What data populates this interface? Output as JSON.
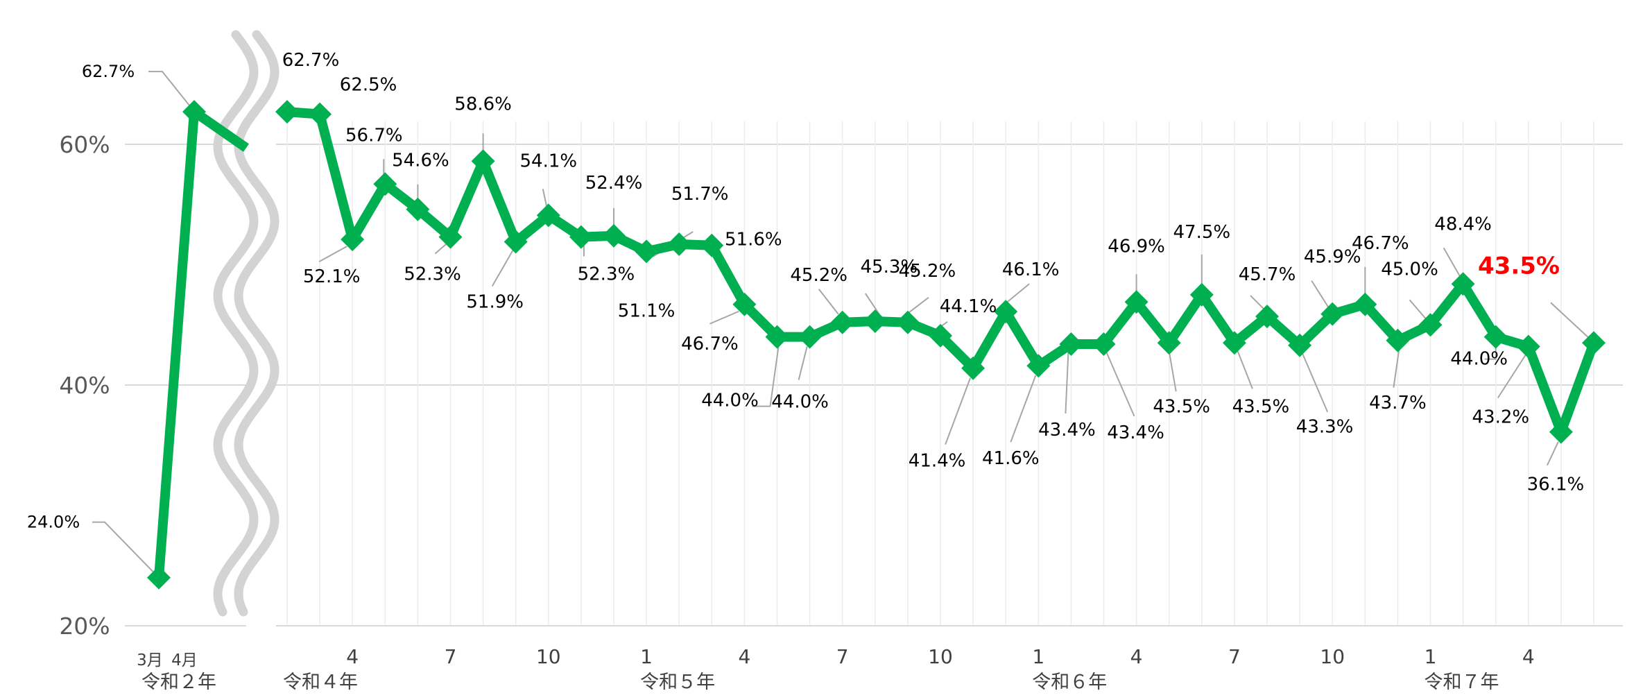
{
  "chart_data": {
    "type": "line",
    "title": "",
    "xlabel": "",
    "ylabel": "",
    "y_ticks": [
      "20%",
      "40%",
      "60%"
    ],
    "ylim": [
      20,
      60
    ],
    "grid": "horizontal and vertical",
    "y_break": true,
    "accent_color": "#00b050",
    "highlight_color": "#ff0000",
    "segments": [
      {
        "era_label": "令和２年",
        "tick_labels": [
          "3月",
          "4月"
        ],
        "points": [
          {
            "period": "令和2年3月",
            "value": 24.0,
            "label": "24.0%"
          },
          {
            "period": "令和2年4月",
            "value": 62.7,
            "label": "62.7%"
          }
        ]
      },
      {
        "era_labels": [
          "令和４年",
          "令和５年",
          "令和６年",
          "令和７年"
        ],
        "tick_labels": [
          "4",
          "7",
          "10",
          "1",
          "4",
          "7",
          "10",
          "1",
          "4",
          "7",
          "10",
          "1",
          "4"
        ],
        "points": [
          {
            "period": "令和4年2月",
            "value": 62.7,
            "label": "62.7%"
          },
          {
            "period": "令和4年3月",
            "value": 62.5,
            "label": "62.5%"
          },
          {
            "period": "令和4年4月",
            "value": 52.1,
            "label": "52.1%"
          },
          {
            "period": "令和4年5月",
            "value": 56.7,
            "label": "56.7%"
          },
          {
            "period": "令和4年6月",
            "value": 54.6,
            "label": "54.6%"
          },
          {
            "period": "令和4年7月",
            "value": 52.3,
            "label": "52.3%"
          },
          {
            "period": "令和4年8月",
            "value": 58.6,
            "label": "58.6%"
          },
          {
            "period": "令和4年9月",
            "value": 51.9,
            "label": "51.9%"
          },
          {
            "period": "令和4年10月",
            "value": 54.1,
            "label": "54.1%"
          },
          {
            "period": "令和4年11月",
            "value": 52.3,
            "label": "52.3%"
          },
          {
            "period": "令和4年12月",
            "value": 52.4,
            "label": "52.4%"
          },
          {
            "period": "令和5年1月",
            "value": 51.1,
            "label": "51.1%"
          },
          {
            "period": "令和5年2月",
            "value": 51.7,
            "label": "51.7%"
          },
          {
            "period": "令和5年3月",
            "value": 51.6,
            "label": "51.6%"
          },
          {
            "period": "令和5年4月",
            "value": 46.7,
            "label": "46.7%"
          },
          {
            "period": "令和5年5月",
            "value": 44.0,
            "label": "44.0%"
          },
          {
            "period": "令和5年6月",
            "value": 44.0,
            "label": "44.0%"
          },
          {
            "period": "令和5年7月",
            "value": 45.2,
            "label": "45.2%"
          },
          {
            "period": "令和5年8月",
            "value": 45.3,
            "label": "45.3%"
          },
          {
            "period": "令和5年9月",
            "value": 45.2,
            "label": "45.2%"
          },
          {
            "period": "令和5年10月",
            "value": 44.1,
            "label": "44.1%"
          },
          {
            "period": "令和5年11月",
            "value": 41.4,
            "label": "41.4%"
          },
          {
            "period": "令和5年12月",
            "value": 46.1,
            "label": "46.1%"
          },
          {
            "period": "令和6年1月",
            "value": 41.6,
            "label": "41.6%"
          },
          {
            "period": "令和6年2月",
            "value": 43.4,
            "label": "43.4%"
          },
          {
            "period": "令和6年3月",
            "value": 43.4,
            "label": "43.4%"
          },
          {
            "period": "令和6年4月",
            "value": 46.9,
            "label": "46.9%"
          },
          {
            "period": "令和6年5月",
            "value": 43.5,
            "label": "43.5%"
          },
          {
            "period": "令和6年6月",
            "value": 47.5,
            "label": "47.5%"
          },
          {
            "period": "令和6年7月",
            "value": 43.5,
            "label": "43.5%"
          },
          {
            "period": "令和6年8月",
            "value": 45.7,
            "label": "45.7%"
          },
          {
            "period": "令和6年9月",
            "value": 43.3,
            "label": "43.3%"
          },
          {
            "period": "令和6年10月",
            "value": 45.9,
            "label": "45.9%"
          },
          {
            "period": "令和6年11月",
            "value": 46.7,
            "label": "46.7%"
          },
          {
            "period": "令和6年12月",
            "value": 43.7,
            "label": "43.7%"
          },
          {
            "period": "令和7年1月",
            "value": 45.0,
            "label": "45.0%"
          },
          {
            "period": "令和7年2月",
            "value": 48.4,
            "label": "48.4%"
          },
          {
            "period": "令和7年3月",
            "value": 44.0,
            "label": "44.0%"
          },
          {
            "period": "令和7年4月",
            "value": 43.2,
            "label": "43.2%"
          },
          {
            "period": "令和7年5月",
            "value": 36.1,
            "label": "36.1%"
          },
          {
            "period": "令和7年6月",
            "value": 43.5,
            "label": "43.5%",
            "highlight": true
          }
        ]
      }
    ]
  }
}
